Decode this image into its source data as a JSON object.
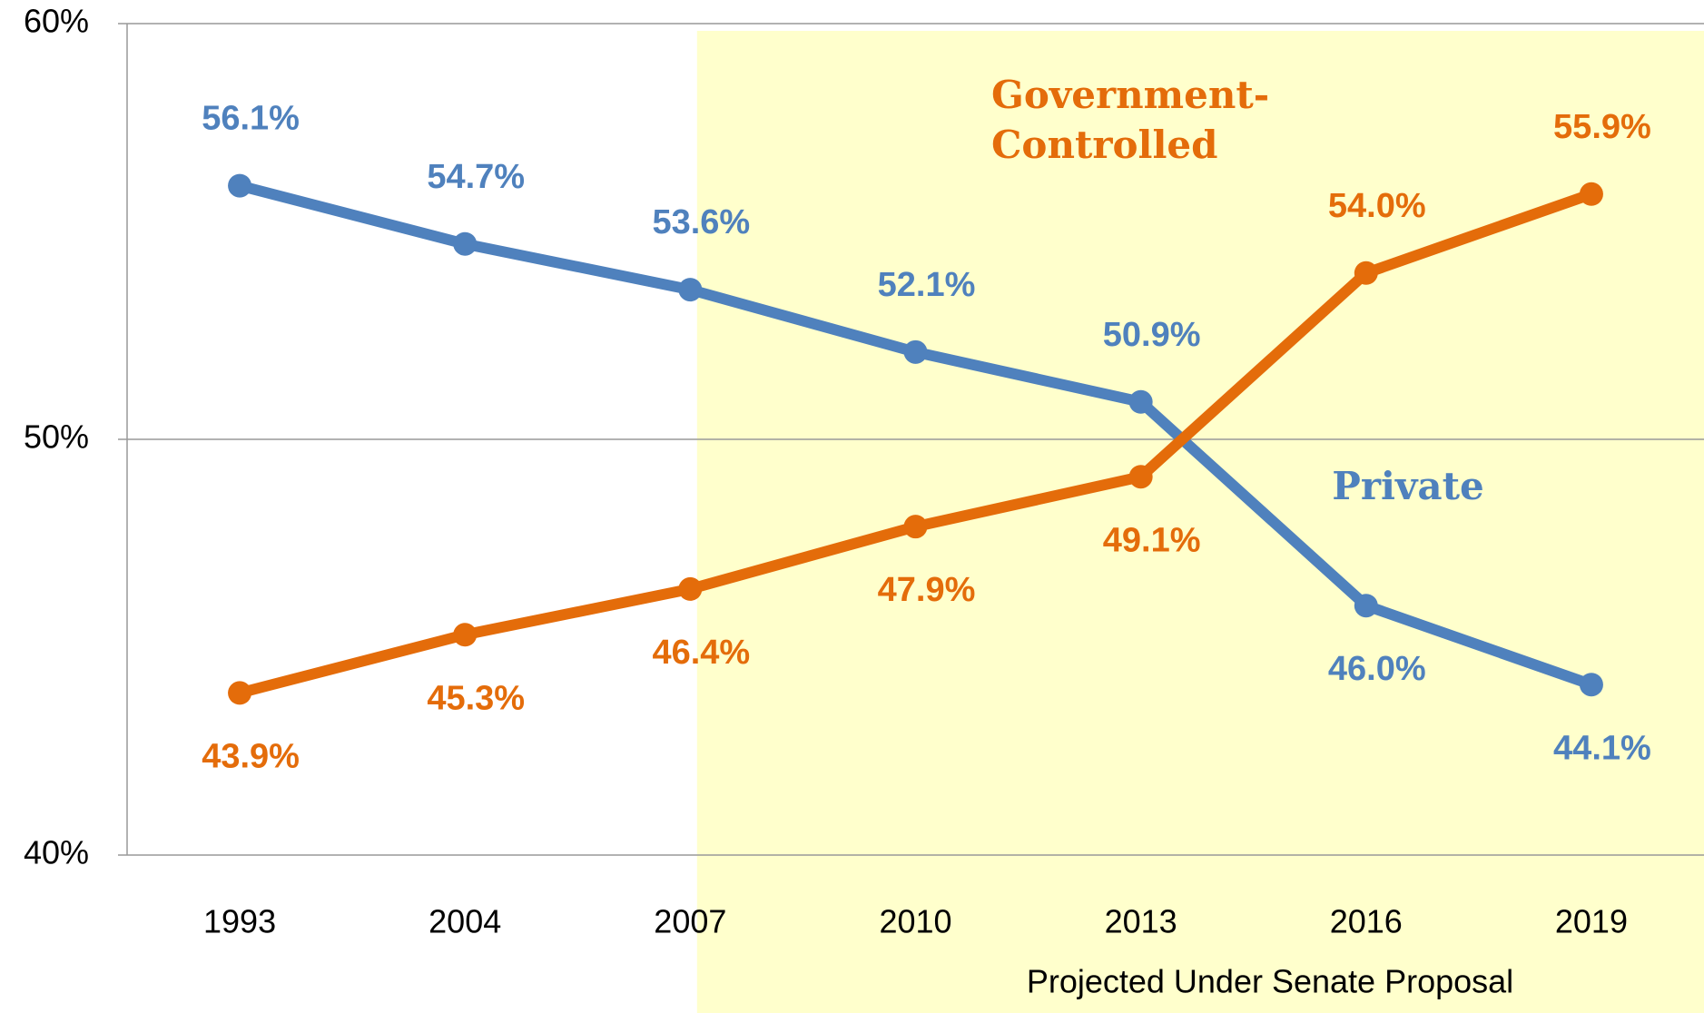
{
  "chart_data": {
    "type": "line",
    "categories": [
      "1993",
      "2004",
      "2007",
      "2010",
      "2013",
      "2016",
      "2019"
    ],
    "series": [
      {
        "name": "Private",
        "color": "#4f81bd",
        "values": [
          56.1,
          54.7,
          53.6,
          52.1,
          50.9,
          46.0,
          44.1
        ],
        "value_labels": [
          "56.1%",
          "54.7%",
          "53.6%",
          "52.1%",
          "50.9%",
          "46.0%",
          "44.1%"
        ]
      },
      {
        "name": "Government-Controlled",
        "color": "#e46c0a",
        "values": [
          43.9,
          45.3,
          46.4,
          47.9,
          49.1,
          54.0,
          55.9
        ],
        "value_labels": [
          "43.9%",
          "45.3%",
          "46.4%",
          "47.9%",
          "49.1%",
          "54.0%",
          "55.9%"
        ]
      }
    ],
    "ylim": [
      40,
      60
    ],
    "yticks": [
      {
        "value": 40,
        "label": "40%"
      },
      {
        "value": 50,
        "label": "50%"
      },
      {
        "value": 60,
        "label": "60%"
      }
    ],
    "grid": true,
    "annotation": "Projected Under Senate Proposal"
  }
}
